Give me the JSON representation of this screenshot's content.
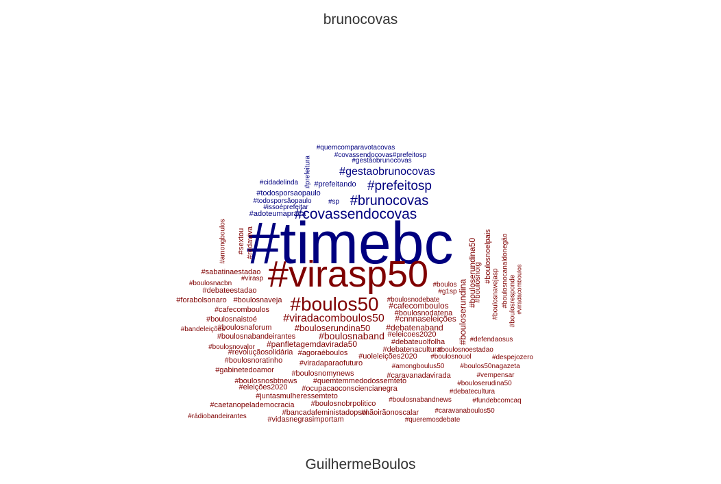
{
  "chart_data": {
    "type": "wordcloud",
    "groups": [
      {
        "name": "brunocovas",
        "color": "#00007f",
        "words": [
          {
            "text": "#timebc"
          },
          {
            "text": "#covassendocovas"
          },
          {
            "text": "#brunocovas"
          },
          {
            "text": "#prefeitosp"
          },
          {
            "text": "#gestaobrunocovas"
          },
          {
            "text": "#quemcomparavotacovas"
          },
          {
            "text": "#covassendocovas#prefeitosp"
          },
          {
            "text": "#gestãobrunocovas"
          },
          {
            "text": "#prefeitura"
          },
          {
            "text": "#cidadelinda"
          },
          {
            "text": "#prefeitando"
          },
          {
            "text": "#todosporsaopaulo"
          },
          {
            "text": "#todosporsãopaulo"
          },
          {
            "text": "#sp"
          },
          {
            "text": "#issoéprefeitar"
          },
          {
            "text": "#adoteumapraça"
          }
        ]
      },
      {
        "name": "GuilhermeBoulos",
        "color": "#7f0000",
        "words": [
          {
            "text": "#virasp50"
          },
          {
            "text": "#boulos50"
          },
          {
            "text": "#viradacomboulos50"
          },
          {
            "text": "#bouloserundina50"
          },
          {
            "text": "#boulosnaband"
          },
          {
            "text": "#debatenaband"
          },
          {
            "text": "#cafecomboulos"
          },
          {
            "text": "#cnnnaseleições"
          },
          {
            "text": "#boulosnodatena"
          },
          {
            "text": "#boulosnodebate"
          },
          {
            "text": "#bouloserundina50"
          },
          {
            "text": "#bouloserundina"
          },
          {
            "text": "#boulosnoig"
          },
          {
            "text": "#boulosnoelpais"
          },
          {
            "text": "#boulosnavejasp"
          },
          {
            "text": "#boulosnocanaldonegão"
          },
          {
            "text": "#boulosresponde"
          },
          {
            "text": "#viradacomboulos"
          },
          {
            "text": "#boulos"
          },
          {
            "text": "#g1sp"
          },
          {
            "text": "#amongboulos"
          },
          {
            "text": "#sextou"
          },
          {
            "text": "#rodaviva"
          },
          {
            "text": "#sabatinaestadao"
          },
          {
            "text": "#virasp"
          },
          {
            "text": "#boulosnacbn"
          },
          {
            "text": "#debateestadao"
          },
          {
            "text": "#forabolsonaro"
          },
          {
            "text": "#boulosnaveja"
          },
          {
            "text": "#cafecomboulos"
          },
          {
            "text": "#boulosnaistoé"
          },
          {
            "text": "#boulosnaforum"
          },
          {
            "text": "#bandeleições"
          },
          {
            "text": "#boulosnabandeirantes"
          },
          {
            "text": "#eleicoes2020"
          },
          {
            "text": "#debateuolfolha"
          },
          {
            "text": "#defendaosus"
          },
          {
            "text": "#boulosnovalor"
          },
          {
            "text": "#panfletagemdavirada50"
          },
          {
            "text": "#revoluçãosolidária"
          },
          {
            "text": "#agoraéboulos"
          },
          {
            "text": "#debatenacultura"
          },
          {
            "text": "#boulosnoestadao"
          },
          {
            "text": "#uoleleições2020"
          },
          {
            "text": "#boulosnouol"
          },
          {
            "text": "#despejozero"
          },
          {
            "text": "#boulosnoratinho"
          },
          {
            "text": "#viradaparaofuturo"
          },
          {
            "text": "#amongboulus50"
          },
          {
            "text": "#boulos50nagazeta"
          },
          {
            "text": "#gabinetedoamor"
          },
          {
            "text": "#boulosnomynews"
          },
          {
            "text": "#caravanadavirada"
          },
          {
            "text": "#vempensar"
          },
          {
            "text": "#boulosnosbtnews"
          },
          {
            "text": "#quemtemmedodossemteto"
          },
          {
            "text": "#bouloserudina50"
          },
          {
            "text": "#eleições2020"
          },
          {
            "text": "#ocupacaoconsciencianegra"
          },
          {
            "text": "#debatecultura"
          },
          {
            "text": "#juntasmulheressemteto"
          },
          {
            "text": "#boulosnabandnews"
          },
          {
            "text": "#fundebcomcaq"
          },
          {
            "text": "#caetanopelademocracia"
          },
          {
            "text": "#boulosnobrpolitico"
          },
          {
            "text": "#caravanaboulos50"
          },
          {
            "text": "#bancadafeministadopsol"
          },
          {
            "text": "#nãoirãonoscalar"
          },
          {
            "text": "#rádiobandeirantes"
          },
          {
            "text": "#vidasnegrasimportam"
          },
          {
            "text": "#queremosdebate"
          }
        ]
      }
    ]
  }
}
